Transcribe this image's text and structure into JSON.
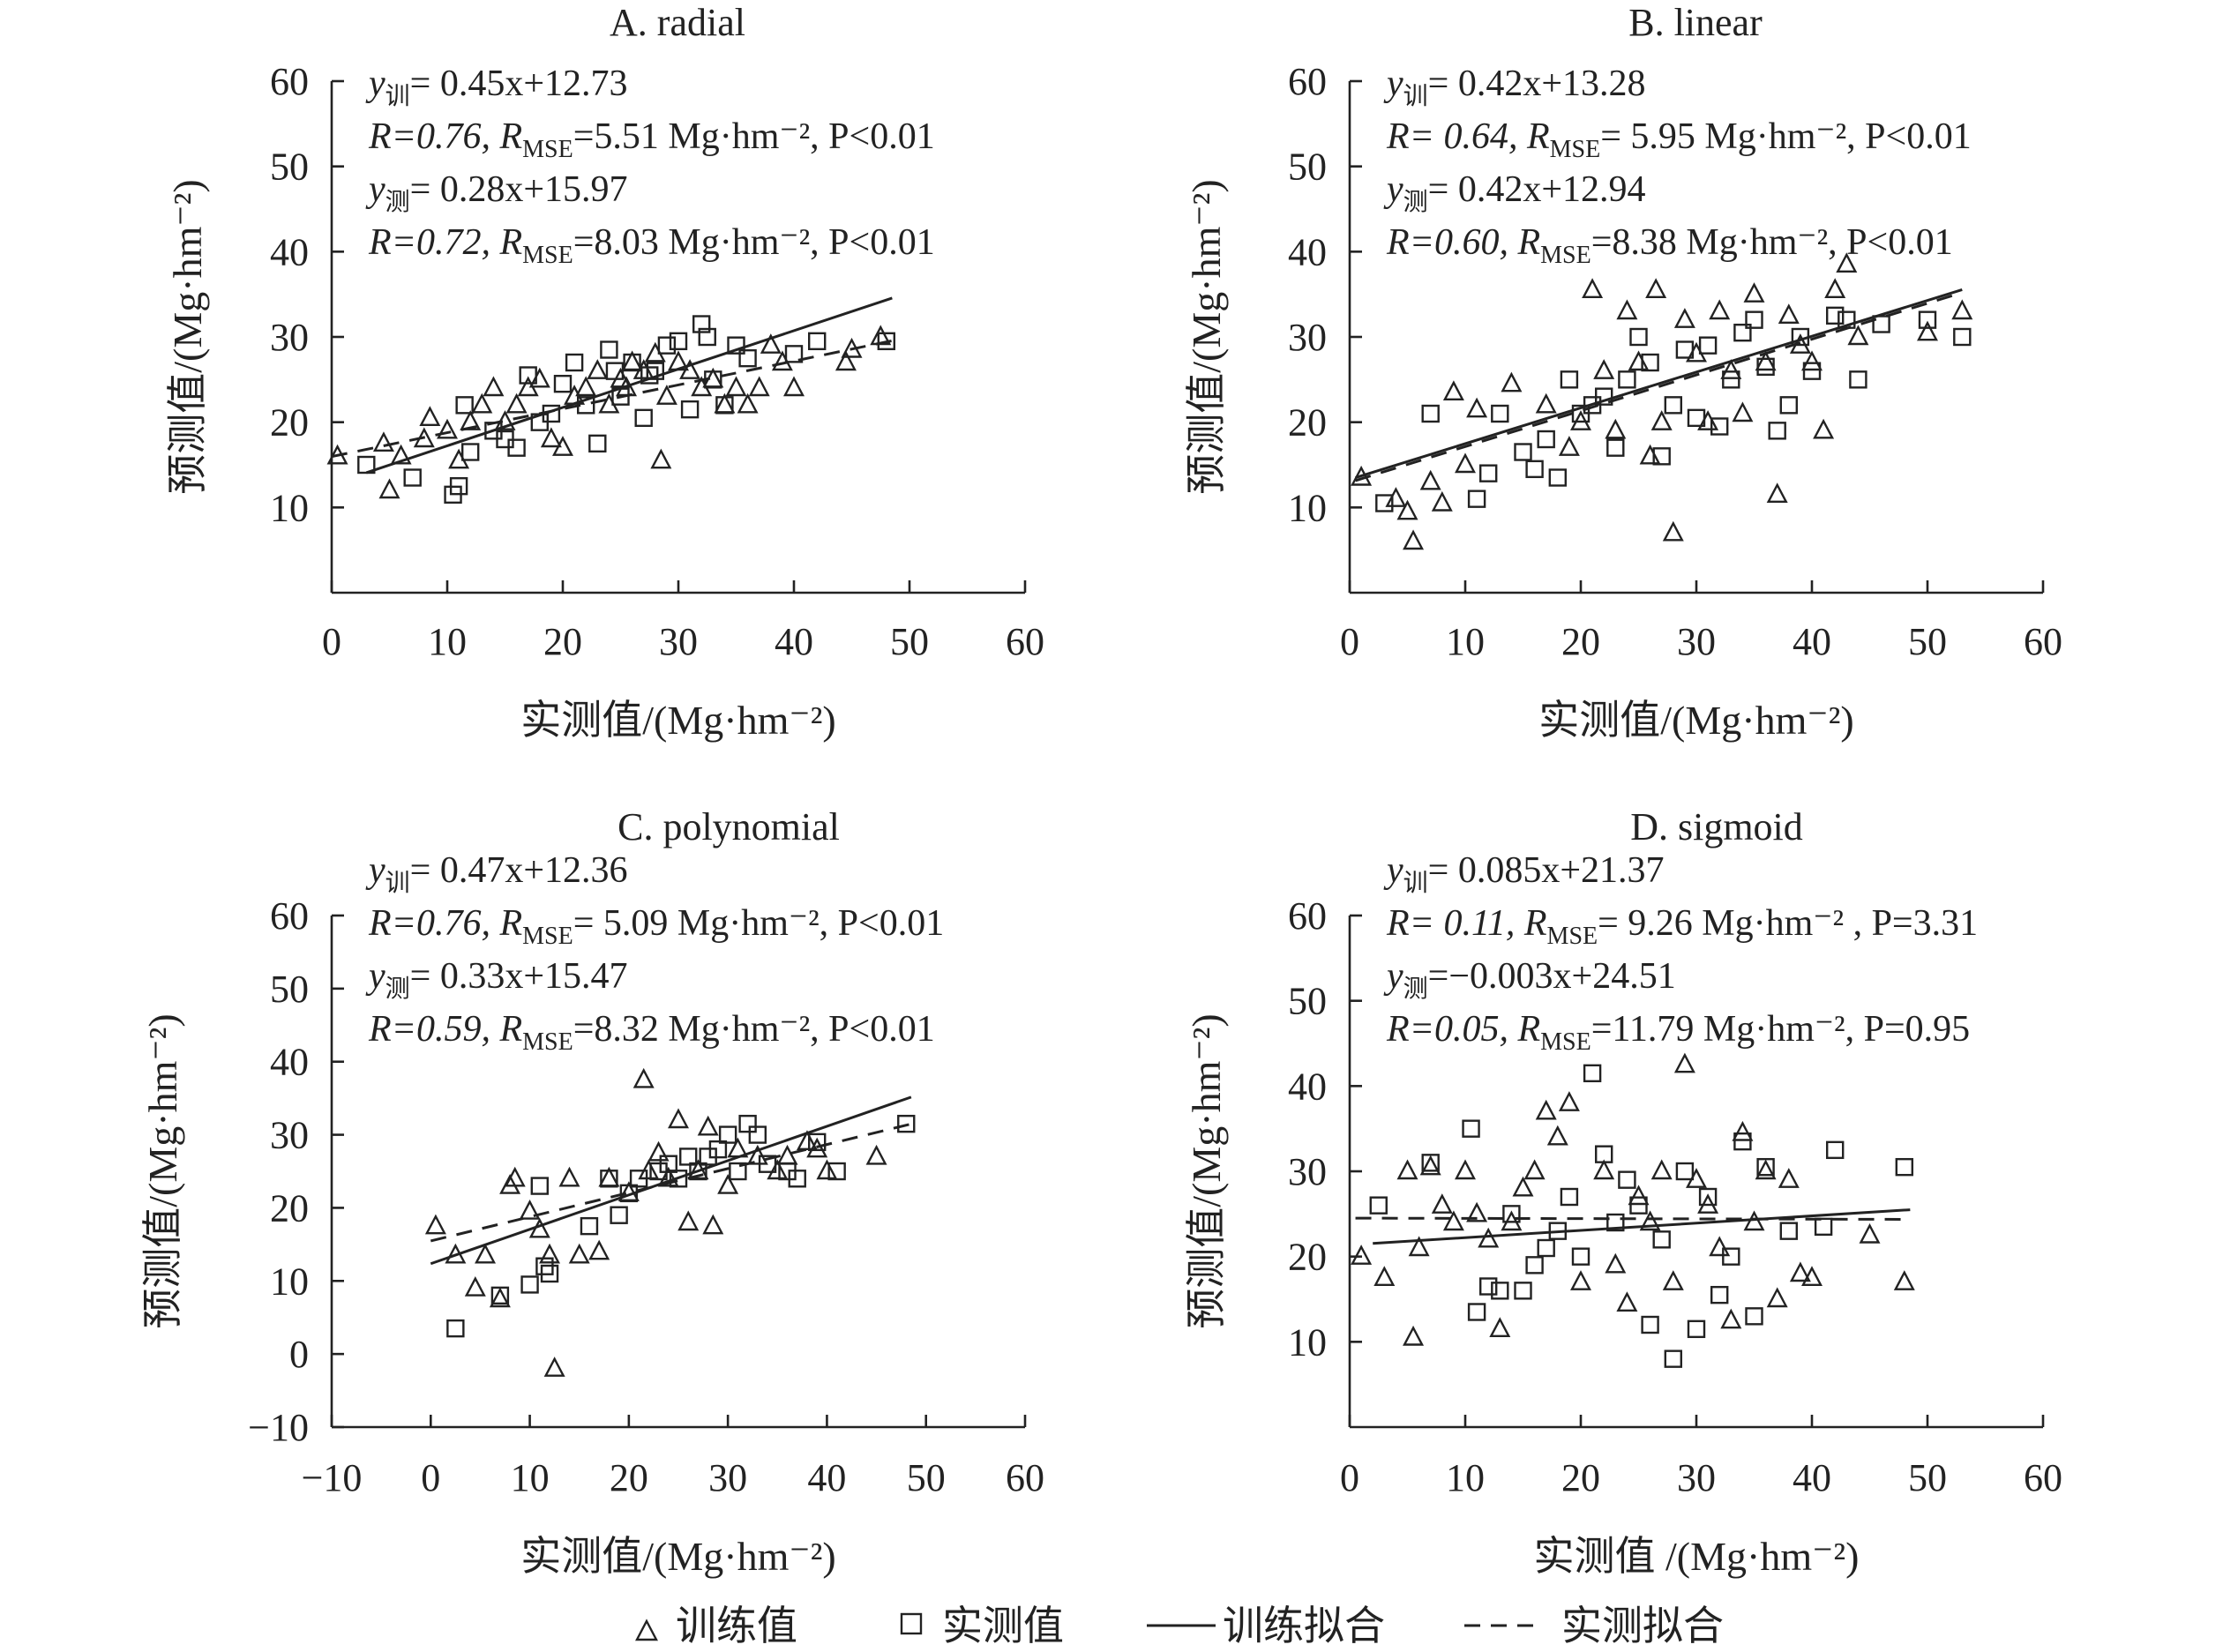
{
  "legend": {
    "train_points": "训练值",
    "test_points": "实测值",
    "train_fit": "训练拟合",
    "test_fit": "实测拟合"
  },
  "chart_data": [
    {
      "id": "A",
      "type": "scatter",
      "title": "A. radial",
      "xlabel": "实测值/(Mg·hm⁻²)",
      "ylabel": "预测值/(Mg·hm⁻²)",
      "xlim": [
        0,
        60
      ],
      "ylim": [
        0,
        60
      ],
      "xticks": [
        "0",
        "10",
        "20",
        "30",
        "40",
        "50",
        "60"
      ],
      "yticks": [
        "10",
        "20",
        "30",
        "40",
        "50",
        "60"
      ],
      "equations": [
        {
          "pre": "y",
          "sub": "训",
          "post": "= 0.45x+12.73"
        },
        {
          "pre": "R=0.76, R",
          "sub": "MSE",
          "post": "=5.51 Mg·hm⁻², P<0.01"
        },
        {
          "pre": "y",
          "sub": "测",
          "post": "= 0.28x+15.97"
        },
        {
          "pre": "R=0.72, R",
          "sub": "MSE",
          "post": "=8.03 Mg·hm⁻², P<0.01"
        }
      ],
      "train_fit": {
        "slope": 0.45,
        "intercept": 12.73,
        "x": [
          3,
          48.5
        ]
      },
      "test_fit": {
        "slope": 0.28,
        "intercept": 15.97,
        "x": [
          0,
          48.5
        ]
      },
      "series": [
        {
          "name": "训练值",
          "marker": "triangle",
          "x": [
            0.5,
            4.5,
            5,
            6,
            8,
            8.5,
            10,
            11,
            12,
            13,
            14,
            15,
            16,
            17,
            18,
            19,
            20,
            21,
            22,
            23,
            24,
            25,
            25.5,
            26,
            27,
            28,
            28.5,
            29,
            30,
            31,
            32,
            33,
            34,
            35,
            36,
            37,
            38,
            39,
            40,
            44.5,
            45,
            47.5
          ],
          "y": [
            16,
            17.5,
            12,
            16,
            18,
            20.5,
            19,
            15.5,
            20,
            22,
            24,
            20,
            22,
            24,
            25,
            18,
            17,
            23,
            24,
            26,
            22,
            25,
            24,
            27,
            26,
            28,
            15.5,
            23,
            27,
            26,
            24,
            25,
            22,
            24,
            22,
            24,
            29,
            27,
            24,
            27,
            28.5,
            30
          ],
          "sizes": [
            2
          ]
        },
        {
          "name": "实测值",
          "marker": "square",
          "x": [
            3,
            7,
            10.5,
            11,
            11.5,
            12,
            14,
            15,
            16,
            17,
            18,
            19,
            20,
            21,
            22,
            23,
            24,
            24.5,
            25,
            26,
            27,
            27.5,
            28,
            29,
            30,
            31,
            32,
            32.5,
            33,
            34,
            35,
            36,
            40,
            42,
            48
          ],
          "y": [
            15,
            13.5,
            11.5,
            12.5,
            22,
            16.5,
            19,
            18,
            17,
            25.5,
            20,
            21,
            24.5,
            27,
            22,
            17.5,
            28.5,
            26,
            23,
            27,
            20.5,
            25.5,
            26,
            29,
            29.5,
            21.5,
            31.5,
            30,
            25,
            22,
            29,
            27.5,
            28,
            29.5,
            29.5
          ]
        }
      ]
    },
    {
      "id": "B",
      "type": "scatter",
      "title": "B. linear",
      "xlabel": "实测值/(Mg·hm⁻²)",
      "ylabel": "预测值/(Mg·hm⁻²)",
      "xlim": [
        0,
        60
      ],
      "ylim": [
        0,
        60
      ],
      "xticks": [
        "0",
        "10",
        "20",
        "30",
        "40",
        "50",
        "60"
      ],
      "yticks": [
        "10",
        "20",
        "30",
        "40",
        "50",
        "60"
      ],
      "equations": [
        {
          "pre": "y",
          "sub": "训",
          "post": "= 0.42x+13.28"
        },
        {
          "pre": "R= 0.64, R",
          "sub": "MSE",
          "post": "= 5.95 Mg·hm⁻², P<0.01"
        },
        {
          "pre": "y",
          "sub": "测",
          "post": "= 0.42x+12.94"
        },
        {
          "pre": "R=0.60, R",
          "sub": "MSE",
          "post": "=8.38 Mg·hm⁻², P<0.01"
        }
      ],
      "train_fit": {
        "slope": 0.42,
        "intercept": 13.28,
        "x": [
          0.5,
          53
        ]
      },
      "test_fit": {
        "slope": 0.42,
        "intercept": 12.94,
        "x": [
          0.5,
          53
        ]
      },
      "series": [
        {
          "name": "训练值",
          "marker": "triangle",
          "x": [
            1,
            4,
            5,
            5.5,
            7,
            8,
            9,
            10,
            11,
            14,
            17,
            19,
            20,
            21,
            22,
            23,
            24,
            25,
            26,
            26.5,
            27,
            28,
            29,
            30,
            31,
            32,
            33,
            34,
            35,
            36,
            37,
            38,
            39,
            40,
            41,
            42,
            43,
            44,
            50,
            53
          ],
          "y": [
            13.5,
            11,
            9.5,
            6,
            13,
            10.5,
            23.5,
            15,
            21.5,
            24.5,
            22,
            17,
            20,
            35.5,
            26,
            19,
            33,
            27,
            16,
            35.5,
            20,
            7,
            32,
            28,
            20,
            33,
            26,
            21,
            35,
            27,
            11.5,
            32.5,
            29,
            27,
            19,
            35.5,
            38.5,
            30,
            30.5,
            33
          ],
          "sizes": [
            2
          ]
        },
        {
          "name": "实测值",
          "marker": "square",
          "x": [
            3,
            7,
            11,
            12,
            13,
            15,
            16,
            17,
            18,
            19,
            20,
            21,
            22,
            23,
            24,
            25,
            26,
            27,
            28,
            29,
            30,
            31,
            32,
            33,
            34,
            35,
            36,
            37,
            38,
            39,
            40,
            42,
            43,
            44,
            46,
            50,
            53
          ],
          "y": [
            10.5,
            21,
            11,
            14,
            21,
            16.5,
            14.5,
            18,
            13.5,
            25,
            21,
            22,
            23,
            17,
            25,
            30,
            27,
            16,
            22,
            28.5,
            20.5,
            29,
            19.5,
            25,
            30.5,
            32,
            26.5,
            19,
            22,
            30,
            26,
            32.5,
            32,
            25,
            31.5,
            32,
            30
          ]
        }
      ]
    },
    {
      "id": "C",
      "type": "scatter",
      "title": "C. polynomial",
      "xlabel": "实测值/(Mg·hm⁻²)",
      "ylabel": "预测值/(Mg·hm⁻²)",
      "xlim": [
        -10,
        60
      ],
      "ylim": [
        -10,
        60
      ],
      "xticks": [
        "−10",
        "0",
        "10",
        "20",
        "30",
        "40",
        "50",
        "60"
      ],
      "yticks": [
        "−10",
        "0",
        "10",
        "20",
        "30",
        "40",
        "50",
        "60"
      ],
      "equations": [
        {
          "pre": "y",
          "sub": "训",
          "post": "= 0.47x+12.36"
        },
        {
          "pre": "R=0.76, R",
          "sub": "MSE",
          "post": "= 5.09 Mg·hm⁻², P<0.01"
        },
        {
          "pre": "y",
          "sub": "测",
          "post": "= 0.33x+15.47"
        },
        {
          "pre": "R=0.59, R",
          "sub": "MSE",
          "post": "=8.32 Mg·hm⁻², P<0.01"
        }
      ],
      "train_fit": {
        "slope": 0.47,
        "intercept": 12.36,
        "x": [
          0,
          48.5
        ]
      },
      "test_fit": {
        "slope": 0.33,
        "intercept": 15.47,
        "x": [
          0,
          48.5
        ]
      },
      "series": [
        {
          "name": "训练值",
          "marker": "triangle",
          "x": [
            0.5,
            2.5,
            4.5,
            5.5,
            7,
            8,
            8.5,
            10,
            11,
            12,
            12.5,
            14,
            15,
            17,
            18,
            20,
            21.5,
            22,
            23,
            24,
            25,
            26,
            27,
            28,
            28.5,
            30,
            31,
            33,
            35,
            36,
            38,
            39,
            40,
            45
          ],
          "y": [
            17.5,
            13.5,
            9,
            13.5,
            7.5,
            23,
            24,
            19.5,
            17,
            13.5,
            -2,
            24,
            13.5,
            14,
            24,
            22,
            37.5,
            25,
            27.5,
            24,
            32,
            18,
            25,
            31,
            17.5,
            23,
            28,
            27,
            25,
            27,
            29,
            28,
            25,
            27
          ],
          "sizes": [
            2
          ]
        },
        {
          "name": "实测值",
          "marker": "square",
          "x": [
            2.5,
            7,
            10,
            11,
            11.5,
            12,
            16,
            18,
            19,
            20,
            21,
            23,
            24,
            25,
            26,
            27,
            28,
            29,
            30,
            31,
            32,
            33,
            34,
            36,
            37,
            39,
            41,
            48
          ],
          "y": [
            3.5,
            8,
            9.5,
            23,
            12,
            11,
            17.5,
            24,
            19,
            22,
            24,
            25,
            26,
            24,
            27,
            25,
            27,
            28,
            30,
            25,
            31.5,
            30,
            26,
            25,
            24,
            29,
            25,
            31.5
          ]
        }
      ]
    },
    {
      "id": "D",
      "type": "scatter",
      "title": "D. sigmoid",
      "xlabel": "实测值 /(Mg·hm⁻²)",
      "ylabel": "预测值/(Mg·hm⁻²)",
      "xlim": [
        0,
        60
      ],
      "ylim": [
        0,
        60
      ],
      "xticks": [
        "0",
        "10",
        "20",
        "30",
        "40",
        "50",
        "60"
      ],
      "yticks": [
        "10",
        "20",
        "30",
        "40",
        "50",
        "60"
      ],
      "equations": [
        {
          "pre": "y",
          "sub": "训",
          "post": "= 0.085x+21.37"
        },
        {
          "pre": "R= 0.11, R",
          "sub": "MSE",
          "post": "= 9.26 Mg·hm⁻² , P=3.31"
        },
        {
          "pre": "y",
          "sub": "测",
          "post": "=−0.003x+24.51"
        },
        {
          "pre": "R=0.05, R",
          "sub": "MSE",
          "post": "=11.79 Mg·hm⁻², P=0.95"
        }
      ],
      "train_fit": {
        "slope": 0.085,
        "intercept": 21.37,
        "x": [
          2,
          48.5
        ]
      },
      "test_fit": {
        "slope": -0.003,
        "intercept": 24.51,
        "x": [
          0.5,
          48
        ]
      },
      "series": [
        {
          "name": "训练值",
          "marker": "triangle",
          "x": [
            1,
            3,
            5,
            5.5,
            6,
            7,
            8,
            9,
            10,
            11,
            12,
            13,
            14,
            15,
            16,
            17,
            18,
            19,
            20,
            22,
            23,
            24,
            25,
            26,
            27,
            28,
            29,
            30,
            31,
            32,
            33,
            34,
            35,
            36,
            37,
            38,
            39,
            40,
            45,
            48
          ],
          "y": [
            20,
            17.5,
            30,
            10.5,
            21,
            30.5,
            26,
            24,
            30,
            25,
            22,
            11.5,
            24,
            28,
            30,
            37,
            34,
            38,
            17,
            30,
            19,
            14.5,
            27,
            24,
            30,
            17,
            42.5,
            29,
            26,
            21,
            12.5,
            34.5,
            24,
            30,
            15,
            29,
            18,
            17.5,
            22.5,
            17
          ],
          "sizes": [
            2
          ]
        },
        {
          "name": "实测值",
          "marker": "square",
          "x": [
            2.5,
            7,
            10.5,
            11,
            12,
            13,
            14,
            15,
            16,
            17,
            18,
            19,
            20,
            21,
            22,
            23,
            24,
            25,
            26,
            27,
            28,
            29,
            30,
            31,
            32,
            33,
            34,
            35,
            36,
            38,
            41,
            42,
            48
          ],
          "y": [
            26,
            31,
            35,
            13.5,
            16.5,
            16,
            25,
            16,
            19,
            21,
            23,
            27,
            20,
            41.5,
            32,
            24,
            29,
            26,
            12,
            22,
            8,
            30,
            11.5,
            27,
            15.5,
            20,
            33.5,
            13,
            30.5,
            23,
            23.5,
            32.5,
            30.5
          ]
        }
      ]
    }
  ]
}
